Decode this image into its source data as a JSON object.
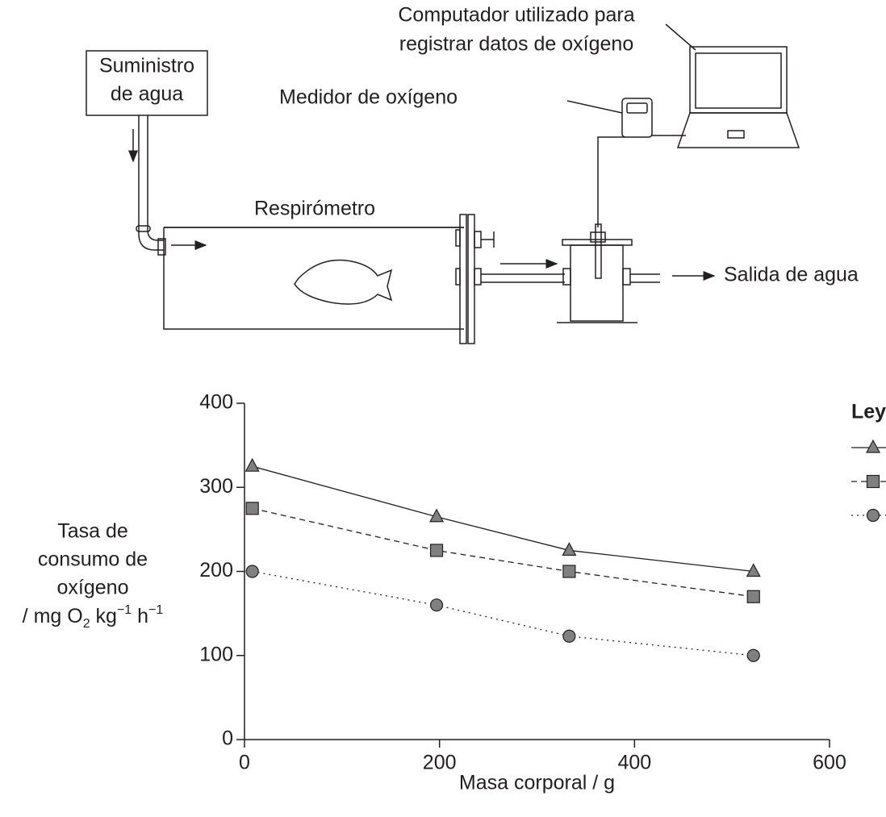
{
  "diagram": {
    "computer_label": [
      "Computador utilizado para",
      "registrar datos de oxígeno"
    ],
    "supply_label": [
      "Suministro",
      "de agua"
    ],
    "meter_label": "Medidor de oxígeno",
    "respirometer_label": "Respirómetro",
    "outlet_label": "Salida de agua"
  },
  "chart_data": {
    "type": "line",
    "xlabel": "Masa corporal / g",
    "ylabel": [
      "Tasa de",
      "consumo de",
      "oxígeno"
    ],
    "ylabel_unit": [
      {
        "text": "/ mg O"
      },
      {
        "text": "2",
        "sub": true
      },
      {
        "text": " kg"
      },
      {
        "text": "−1",
        "sup": true
      },
      {
        "text": " h"
      },
      {
        "text": "−1",
        "sup": true
      }
    ],
    "legend_title": "Ley",
    "x": [
      8,
      197,
      333,
      522
    ],
    "series": [
      {
        "color": "#808080",
        "marker": "triangle",
        "dash": "solid",
        "values": [
          325,
          265,
          225,
          200
        ]
      },
      {
        "color": "#808080",
        "marker": "square",
        "dash": "dashed",
        "values": [
          275,
          225,
          200,
          170
        ]
      },
      {
        "color": "#808080",
        "marker": "circle",
        "dash": "dotted",
        "values": [
          200,
          160,
          123,
          100
        ]
      }
    ],
    "xlim": [
      0,
      600
    ],
    "xticks": [
      0,
      200,
      400,
      600
    ],
    "ylim": [
      0,
      400
    ],
    "yticks": [
      0,
      100,
      200,
      300,
      400
    ]
  }
}
